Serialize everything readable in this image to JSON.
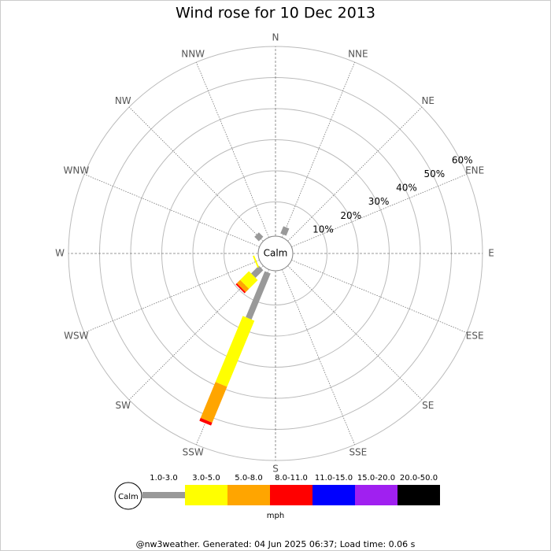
{
  "chart_data": {
    "type": "windrose",
    "title": "Wind rose for 10 Dec 2013",
    "directions": [
      "N",
      "NNE",
      "NE",
      "ENE",
      "E",
      "ESE",
      "SE",
      "SSE",
      "S",
      "SSW",
      "SW",
      "WSW",
      "W",
      "WNW",
      "NW",
      "NNW"
    ],
    "calm_label": "Calm",
    "unit": "mph",
    "rlim": [
      0,
      60
    ],
    "rticks": [
      {
        "value": 10,
        "label": "10%"
      },
      {
        "value": 20,
        "label": "20%"
      },
      {
        "value": 30,
        "label": "30%"
      },
      {
        "value": 40,
        "label": "40%"
      },
      {
        "value": 50,
        "label": "50%"
      },
      {
        "value": 60,
        "label": "60%"
      }
    ],
    "series": [
      {
        "name": "1.0-3.0",
        "color": "#999999",
        "values": [
          0,
          2.5,
          0,
          0,
          0,
          0,
          0,
          0,
          0,
          16,
          3.5,
          0,
          0,
          0,
          2,
          0
        ]
      },
      {
        "name": "3.0-5.0",
        "color": "#ffff00",
        "values": [
          0,
          0,
          0,
          0,
          0,
          0,
          0,
          0,
          0,
          23,
          4,
          0.5,
          0,
          0,
          0,
          0
        ]
      },
      {
        "name": "5.0-8.0",
        "color": "#ffa500",
        "values": [
          0,
          0,
          0,
          0,
          0,
          0,
          0,
          0,
          0,
          12.5,
          1.5,
          0,
          0,
          0,
          0,
          0
        ]
      },
      {
        "name": "8.0-11.0",
        "color": "#ff0000",
        "values": [
          0,
          0,
          0,
          0,
          0,
          0,
          0,
          0,
          0,
          1,
          0.5,
          0,
          0,
          0,
          0,
          0
        ]
      },
      {
        "name": "11.0-15.0",
        "color": "#0000ff",
        "values": [
          0,
          0,
          0,
          0,
          0,
          0,
          0,
          0,
          0,
          0,
          0,
          0,
          0,
          0,
          0,
          0
        ]
      },
      {
        "name": "15.0-20.0",
        "color": "#a020f0",
        "values": [
          0,
          0,
          0,
          0,
          0,
          0,
          0,
          0,
          0,
          0,
          0,
          0,
          0,
          0,
          0,
          0
        ]
      },
      {
        "name": "20.0-50.0",
        "color": "#000000",
        "values": [
          0,
          0,
          0,
          0,
          0,
          0,
          0,
          0,
          0,
          0,
          0,
          0,
          0,
          0,
          0,
          0
        ]
      }
    ],
    "footer": "@nw3weather. Generated: 04 Jun 2025 06:37; Load time: 0.06 s"
  }
}
